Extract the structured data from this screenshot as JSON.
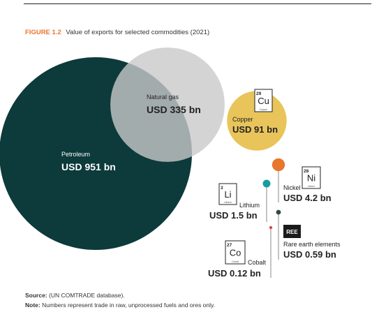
{
  "figure": {
    "label": "FIGURE 1.2",
    "title": "Value of exports for selected commodities (2021)"
  },
  "chart_data": {
    "type": "bubble",
    "title": "Value of exports for selected commodities (2021)",
    "unit": "USD bn",
    "series": [
      {
        "name": "Petroleum",
        "value": 951,
        "value_label": "USD 951 bn",
        "color": "#0d3a3a"
      },
      {
        "name": "Natural gas",
        "value": 335,
        "value_label": "USD 335 bn",
        "color": "#c9c9cb"
      },
      {
        "name": "Copper",
        "value": 91,
        "value_label": "USD 91 bn",
        "color": "#e8c45a",
        "symbol": "Cu",
        "atomic_number": "29",
        "element_name": "Copper"
      },
      {
        "name": "Nickel",
        "value": 4.2,
        "value_label": "USD 4.2 bn",
        "color": "#e8762b",
        "symbol": "Ni",
        "atomic_number": "28",
        "element_name": "Nickel"
      },
      {
        "name": "Lithium",
        "value": 1.5,
        "value_label": "USD 1.5 bn",
        "color": "#1a9ba0",
        "symbol": "Li",
        "atomic_number": "3",
        "element_name": "Lithium"
      },
      {
        "name": "Rare earth elements",
        "value": 0.59,
        "value_label": "USD 0.59 bn",
        "color": "#2f4a4a",
        "symbol": "REE"
      },
      {
        "name": "Cobalt",
        "value": 0.12,
        "value_label": "USD 0.12 bn",
        "color": "#d64a4a",
        "symbol": "Co",
        "atomic_number": "27",
        "element_name": "Cobalt"
      }
    ]
  },
  "footer": {
    "source_label": "Source:",
    "source_text": "(UN COMTRADE database).",
    "note_label": "Note:",
    "note_text": "Numbers represent trade in raw, unprocessed fuels and ores only."
  }
}
